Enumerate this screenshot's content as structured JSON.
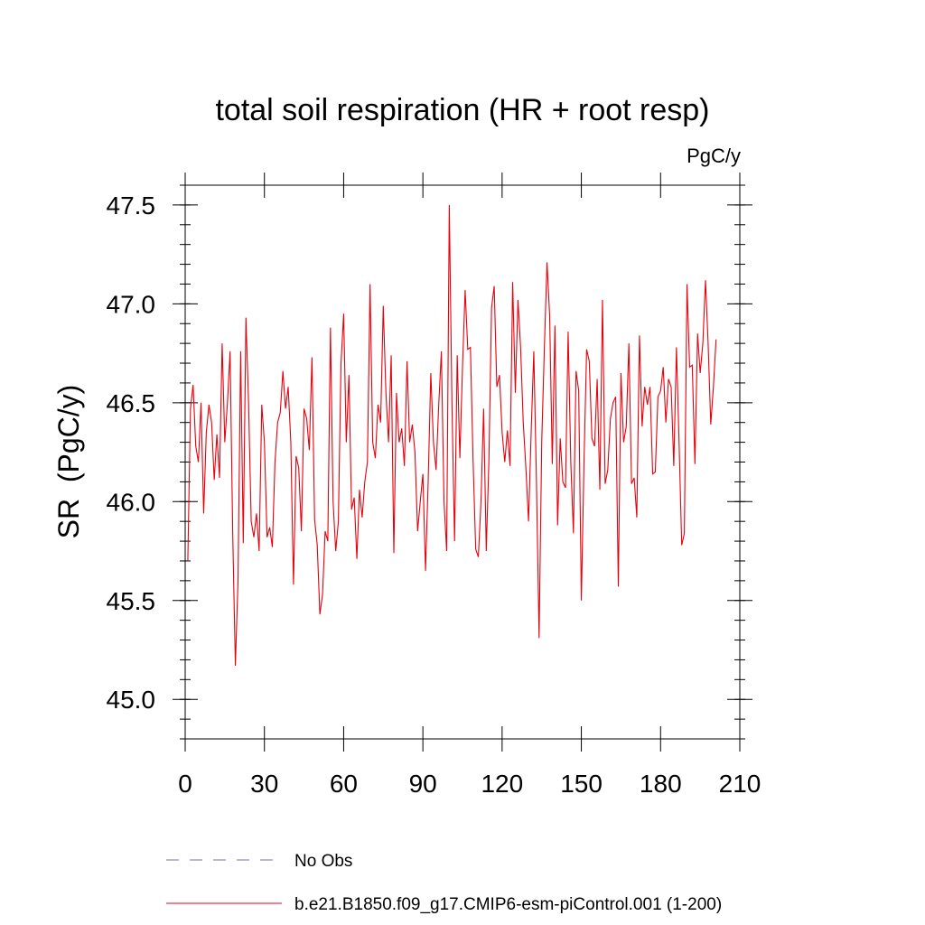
{
  "chart_data": {
    "type": "line",
    "title": "total soil respiration (HR + root resp)",
    "units": "PgC/y",
    "ylabel": "SR  (PgC/y)",
    "xlabel": "",
    "xlim": [
      0,
      210
    ],
    "ylim": [
      44.8,
      47.6
    ],
    "xticks": [
      0,
      30,
      60,
      90,
      120,
      150,
      180,
      210
    ],
    "yticks": [
      45.0,
      45.5,
      46.0,
      46.5,
      47.0,
      47.5
    ],
    "ytick_labels": [
      "45.0",
      "45.5",
      "46.0",
      "46.5",
      "47.0",
      "47.5"
    ],
    "legend": [
      {
        "label": "No Obs",
        "color": "#7b6fb0",
        "style": "dashed"
      },
      {
        "label": "b.e21.B1850.f09_g17.CMIP6-esm-piControl.001 (1-200)",
        "color": "#e8000b",
        "style": "solid"
      }
    ],
    "series": [
      {
        "name": "b.e21.B1850.f09_g17.CMIP6-esm-piControl.001 (1-200)",
        "color": "#e8000b",
        "x_start": 1,
        "values": [
          45.7,
          46.47,
          46.59,
          46.28,
          46.2,
          46.5,
          45.94,
          46.35,
          46.49,
          46.4,
          46.11,
          46.34,
          46.12,
          46.8,
          46.3,
          46.5,
          46.76,
          45.84,
          45.17,
          45.6,
          46.76,
          45.79,
          46.93,
          46.5,
          45.9,
          45.82,
          45.94,
          45.75,
          46.49,
          46.3,
          45.82,
          45.87,
          45.77,
          46.2,
          46.4,
          46.45,
          46.66,
          46.47,
          46.58,
          46.3,
          45.58,
          46.23,
          46.17,
          45.85,
          46.47,
          46.42,
          46.26,
          46.73,
          45.91,
          45.78,
          45.43,
          45.53,
          45.85,
          45.8,
          46.88,
          46.0,
          45.75,
          45.9,
          46.7,
          46.95,
          46.3,
          46.64,
          45.96,
          46.02,
          45.71,
          46.06,
          45.92,
          46.1,
          46.2,
          47.1,
          46.3,
          46.22,
          46.49,
          46.4,
          46.99,
          46.55,
          46.3,
          46.74,
          45.74,
          46.55,
          46.3,
          46.37,
          46.18,
          46.71,
          46.3,
          46.39,
          46.25,
          45.85,
          46.0,
          46.14,
          45.65,
          46.1,
          46.65,
          46.3,
          46.16,
          46.49,
          46.76,
          46.0,
          45.75,
          47.5,
          46.5,
          45.8,
          46.74,
          46.22,
          46.68,
          47.07,
          46.77,
          46.78,
          46.21,
          45.76,
          45.72,
          46.0,
          46.47,
          45.75,
          46.21,
          46.98,
          47.09,
          46.58,
          46.64,
          46.35,
          46.2,
          46.36,
          46.18,
          47.11,
          46.55,
          47.02,
          46.78,
          46.4,
          46.17,
          45.9,
          46.35,
          46.76,
          46.1,
          45.31,
          46.3,
          46.78,
          47.21,
          46.94,
          46.19,
          46.89,
          45.88,
          46.32,
          46.1,
          46.07,
          46.86,
          46.2,
          45.84,
          46.66,
          46.56,
          45.5,
          46.2,
          46.77,
          46.71,
          46.32,
          46.28,
          46.62,
          46.06,
          47.02,
          46.09,
          46.16,
          46.42,
          46.5,
          46.53,
          45.57,
          46.65,
          46.3,
          46.38,
          46.8,
          46.09,
          46.12,
          45.92,
          46.84,
          46.38,
          46.58,
          46.49,
          46.58,
          46.14,
          46.15,
          46.53,
          46.56,
          46.68,
          46.4,
          46.62,
          46.58,
          46.18,
          46.78,
          46.3,
          45.78,
          45.84,
          47.1,
          46.68,
          46.69,
          46.19,
          46.85,
          46.65,
          46.8,
          47.12,
          46.8,
          46.39,
          46.58,
          46.82
        ]
      }
    ]
  }
}
